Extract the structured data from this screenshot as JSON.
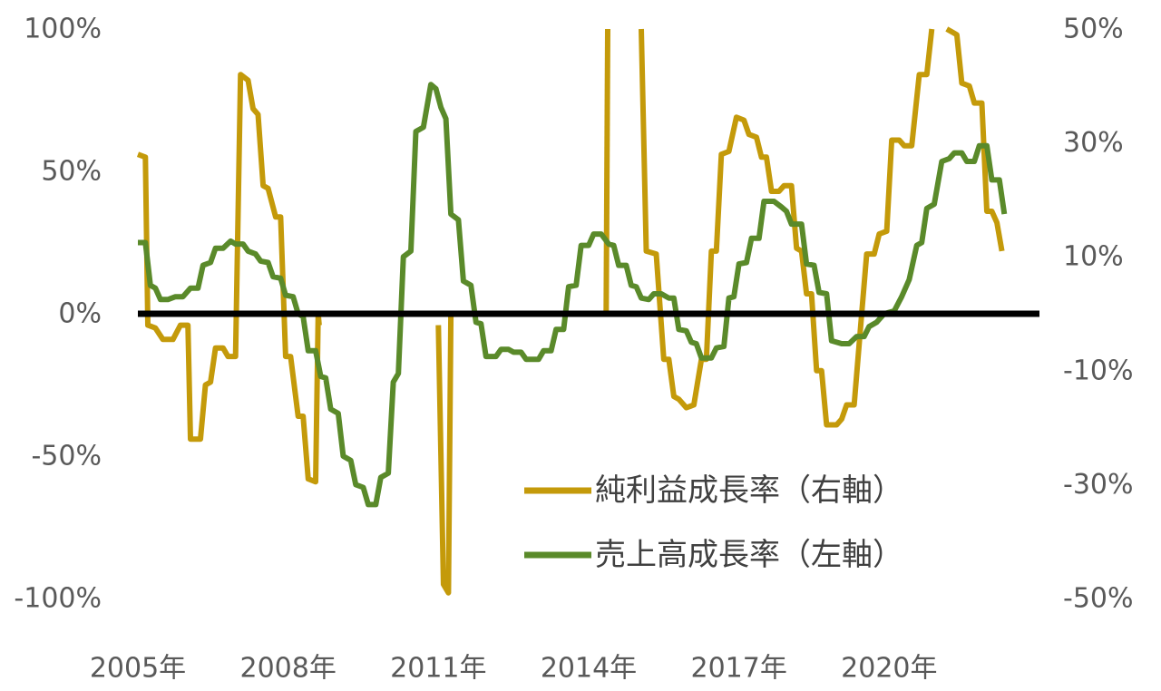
{
  "chart_data": {
    "type": "line",
    "x_ticks": [
      "2005年",
      "2008年",
      "2011年",
      "2014年",
      "2017年",
      "2020年"
    ],
    "left_axis": {
      "ticks": [
        "100%",
        "50%",
        "0%",
        "-50%",
        "-100%"
      ],
      "ylim": [
        -100,
        100
      ]
    },
    "right_axis": {
      "ticks": [
        "50%",
        "30%",
        "10%",
        "-10%",
        "-30%",
        "-50%"
      ],
      "ylim": [
        -50,
        50
      ]
    },
    "xlim": [
      2005.0,
      2023.0
    ],
    "series": [
      {
        "name": "純利益成長率（右軸）",
        "axis": "right",
        "color": "#C49A0A",
        "values": [
          [
            2005.0,
            28
          ],
          [
            2005.15,
            27.5
          ],
          [
            2005.2,
            -2
          ],
          [
            2005.35,
            -2.5
          ],
          [
            2005.5,
            -4.5
          ],
          [
            2005.7,
            -4.5
          ],
          [
            2005.85,
            -2
          ],
          [
            2006.0,
            -2
          ],
          [
            2006.05,
            -22
          ],
          [
            2006.25,
            -22
          ],
          [
            2006.35,
            -12.5
          ],
          [
            2006.45,
            -12
          ],
          [
            2006.55,
            -6
          ],
          [
            2006.7,
            -6
          ],
          [
            2006.8,
            -7.5
          ],
          [
            2006.95,
            -7.5
          ],
          [
            2007.05,
            42
          ],
          [
            2007.2,
            41
          ],
          [
            2007.3,
            36
          ],
          [
            2007.4,
            35
          ],
          [
            2007.5,
            22.5
          ],
          [
            2007.6,
            22
          ],
          [
            2007.75,
            17
          ],
          [
            2007.85,
            17
          ],
          [
            2007.95,
            -7.5
          ],
          [
            2008.05,
            -7.5
          ],
          [
            2008.2,
            -18
          ],
          [
            2008.3,
            -18
          ],
          [
            2008.4,
            -29
          ],
          [
            2008.55,
            -29.5
          ],
          [
            2008.6,
            0
          ],
          [
            2008.62,
            -2
          ]
        ]
      },
      {
        "name": "純利益成長率（右軸）",
        "axis": "right",
        "color": "#C49A0A",
        "values": [
          [
            2011.0,
            -2
          ],
          [
            2011.1,
            -47.5
          ],
          [
            2011.2,
            -49
          ],
          [
            2011.25,
            0
          ]
        ]
      },
      {
        "name": "純利益成長率（右軸）",
        "axis": "right",
        "color": "#C49A0A",
        "values": [
          [
            2014.35,
            0
          ],
          [
            2014.38,
            50
          ]
        ]
      },
      {
        "name": "純利益成長率（右軸）",
        "axis": "right",
        "color": "#C49A0A",
        "values": [
          [
            2015.05,
            50
          ],
          [
            2015.15,
            11
          ],
          [
            2015.35,
            10.5
          ],
          [
            2015.5,
            -8
          ],
          [
            2015.6,
            -8
          ],
          [
            2015.7,
            -14.5
          ],
          [
            2015.8,
            -15
          ],
          [
            2015.95,
            -16.5
          ],
          [
            2016.1,
            -16
          ],
          [
            2016.25,
            -8
          ],
          [
            2016.35,
            -8
          ],
          [
            2016.45,
            11
          ],
          [
            2016.55,
            11
          ],
          [
            2016.65,
            28
          ],
          [
            2016.8,
            28.5
          ],
          [
            2016.95,
            34.5
          ],
          [
            2017.1,
            34
          ],
          [
            2017.2,
            31.5
          ],
          [
            2017.35,
            31
          ],
          [
            2017.45,
            27.5
          ],
          [
            2017.55,
            27.5
          ],
          [
            2017.65,
            21.5
          ],
          [
            2017.8,
            21.5
          ],
          [
            2017.9,
            22.5
          ],
          [
            2018.05,
            22.5
          ],
          [
            2018.15,
            11.5
          ],
          [
            2018.25,
            11
          ],
          [
            2018.35,
            3.5
          ],
          [
            2018.45,
            3.5
          ],
          [
            2018.55,
            -10
          ],
          [
            2018.65,
            -10
          ],
          [
            2018.75,
            -19.5
          ],
          [
            2018.95,
            -19.5
          ],
          [
            2019.05,
            -18.5
          ],
          [
            2019.15,
            -16
          ],
          [
            2019.3,
            -16
          ],
          [
            2019.45,
            0
          ],
          [
            2019.55,
            10.5
          ],
          [
            2019.7,
            10.5
          ],
          [
            2019.8,
            14
          ],
          [
            2019.95,
            14.5
          ],
          [
            2020.05,
            30.5
          ],
          [
            2020.2,
            30.5
          ],
          [
            2020.3,
            29.5
          ],
          [
            2020.45,
            29.5
          ],
          [
            2020.6,
            42
          ],
          [
            2020.75,
            42
          ],
          [
            2020.85,
            50
          ]
        ]
      },
      {
        "name": "純利益成長率（右軸）",
        "axis": "right",
        "color": "#C49A0A",
        "values": [
          [
            2021.15,
            50
          ],
          [
            2021.25,
            49.5
          ],
          [
            2021.35,
            49
          ],
          [
            2021.45,
            40.5
          ],
          [
            2021.6,
            40
          ],
          [
            2021.7,
            37
          ],
          [
            2021.85,
            37
          ],
          [
            2021.95,
            18
          ],
          [
            2022.05,
            18
          ],
          [
            2022.15,
            16
          ],
          [
            2022.25,
            11
          ]
        ]
      },
      {
        "name": "売上高成長率（左軸）",
        "axis": "left",
        "color": "#5A8A2A",
        "values": [
          [
            2005.0,
            25
          ],
          [
            2005.15,
            25
          ],
          [
            2005.25,
            10
          ],
          [
            2005.35,
            9
          ],
          [
            2005.45,
            5
          ],
          [
            2005.6,
            5
          ],
          [
            2005.75,
            6
          ],
          [
            2005.9,
            6
          ],
          [
            2006.05,
            9
          ],
          [
            2006.2,
            9
          ],
          [
            2006.3,
            17
          ],
          [
            2006.45,
            18
          ],
          [
            2006.55,
            23
          ],
          [
            2006.7,
            23
          ],
          [
            2006.85,
            25.5
          ],
          [
            2006.95,
            24.5
          ],
          [
            2007.1,
            24.5
          ],
          [
            2007.2,
            22
          ],
          [
            2007.35,
            21
          ],
          [
            2007.45,
            18.5
          ],
          [
            2007.6,
            18
          ],
          [
            2007.7,
            13
          ],
          [
            2007.85,
            12.5
          ],
          [
            2007.95,
            6.5
          ],
          [
            2008.1,
            6
          ],
          [
            2008.2,
            0
          ],
          [
            2008.3,
            -1
          ],
          [
            2008.4,
            -13
          ],
          [
            2008.55,
            -13
          ],
          [
            2008.65,
            -22
          ],
          [
            2008.75,
            -22.5
          ],
          [
            2008.85,
            -33.5
          ],
          [
            2009.0,
            -35
          ],
          [
            2009.1,
            -50
          ],
          [
            2009.25,
            -51.5
          ],
          [
            2009.35,
            -60
          ],
          [
            2009.5,
            -61
          ],
          [
            2009.6,
            -67
          ],
          [
            2009.75,
            -67
          ],
          [
            2009.85,
            -57.5
          ],
          [
            2010.0,
            -56
          ],
          [
            2010.1,
            -24
          ],
          [
            2010.2,
            -21
          ],
          [
            2010.3,
            20
          ],
          [
            2010.45,
            22
          ],
          [
            2010.55,
            64
          ],
          [
            2010.7,
            65.5
          ],
          [
            2010.85,
            80.5
          ],
          [
            2010.95,
            79
          ],
          [
            2011.05,
            72.5
          ],
          [
            2011.15,
            68.5
          ],
          [
            2011.25,
            35
          ],
          [
            2011.4,
            33
          ],
          [
            2011.5,
            11.5
          ],
          [
            2011.65,
            10
          ],
          [
            2011.75,
            -3
          ],
          [
            2011.85,
            -3.5
          ],
          [
            2011.95,
            -15
          ],
          [
            2012.15,
            -15
          ],
          [
            2012.25,
            -12.5
          ],
          [
            2012.4,
            -12.5
          ],
          [
            2012.5,
            -13.5
          ],
          [
            2012.65,
            -13.5
          ],
          [
            2012.75,
            -16
          ],
          [
            2013.0,
            -16
          ],
          [
            2013.1,
            -13
          ],
          [
            2013.25,
            -13
          ],
          [
            2013.35,
            -5.5
          ],
          [
            2013.5,
            -5.5
          ],
          [
            2013.6,
            9.5
          ],
          [
            2013.75,
            10
          ],
          [
            2013.85,
            24
          ],
          [
            2014.0,
            24
          ],
          [
            2014.1,
            28
          ],
          [
            2014.25,
            28
          ],
          [
            2014.4,
            24.5
          ],
          [
            2014.5,
            24
          ],
          [
            2014.6,
            17
          ],
          [
            2014.75,
            17
          ],
          [
            2014.85,
            10
          ],
          [
            2014.95,
            9.5
          ],
          [
            2015.05,
            5.5
          ],
          [
            2015.2,
            5
          ],
          [
            2015.3,
            7
          ],
          [
            2015.45,
            7
          ],
          [
            2015.6,
            5.5
          ],
          [
            2015.7,
            5.5
          ],
          [
            2015.8,
            -5.5
          ],
          [
            2015.95,
            -6
          ],
          [
            2016.05,
            -10
          ],
          [
            2016.15,
            -10.5
          ],
          [
            2016.25,
            -15.5
          ],
          [
            2016.45,
            -15.5
          ],
          [
            2016.55,
            -12
          ],
          [
            2016.7,
            -11.5
          ],
          [
            2016.8,
            5.5
          ],
          [
            2016.9,
            6
          ],
          [
            2017.0,
            17.5
          ],
          [
            2017.15,
            18
          ],
          [
            2017.25,
            26.5
          ],
          [
            2017.4,
            26.5
          ],
          [
            2017.5,
            39.5
          ],
          [
            2017.7,
            39.5
          ],
          [
            2017.85,
            37.5
          ],
          [
            2017.95,
            36
          ],
          [
            2018.05,
            31.5
          ],
          [
            2018.25,
            31.5
          ],
          [
            2018.35,
            17.5
          ],
          [
            2018.5,
            17
          ],
          [
            2018.6,
            7.5
          ],
          [
            2018.75,
            7
          ],
          [
            2018.85,
            -9.5
          ],
          [
            2019.05,
            -10.5
          ],
          [
            2019.2,
            -10.5
          ],
          [
            2019.35,
            -8
          ],
          [
            2019.5,
            -8
          ],
          [
            2019.6,
            -4.5
          ],
          [
            2019.75,
            -3
          ],
          [
            2019.9,
            0
          ],
          [
            2020.1,
            1
          ],
          [
            2020.25,
            6
          ],
          [
            2020.4,
            12
          ],
          [
            2020.55,
            24
          ],
          [
            2020.65,
            25
          ],
          [
            2020.75,
            37
          ],
          [
            2020.9,
            38.5
          ],
          [
            2021.05,
            53.5
          ],
          [
            2021.2,
            54.5
          ],
          [
            2021.3,
            56.5
          ],
          [
            2021.45,
            56.5
          ],
          [
            2021.55,
            53.5
          ],
          [
            2021.7,
            53.5
          ],
          [
            2021.8,
            59
          ],
          [
            2021.95,
            59
          ],
          [
            2022.05,
            47
          ],
          [
            2022.2,
            47
          ],
          [
            2022.3,
            35
          ]
        ]
      }
    ],
    "reference_line": {
      "value": 0,
      "color": "#000000"
    },
    "legend": [
      {
        "label": "純利益成長率（右軸）",
        "color": "#C49A0A"
      },
      {
        "label": "売上高成長率（左軸）",
        "color": "#5A8A2A"
      }
    ],
    "legend_position": "bottom-right (inside plot)",
    "grid": false
  }
}
